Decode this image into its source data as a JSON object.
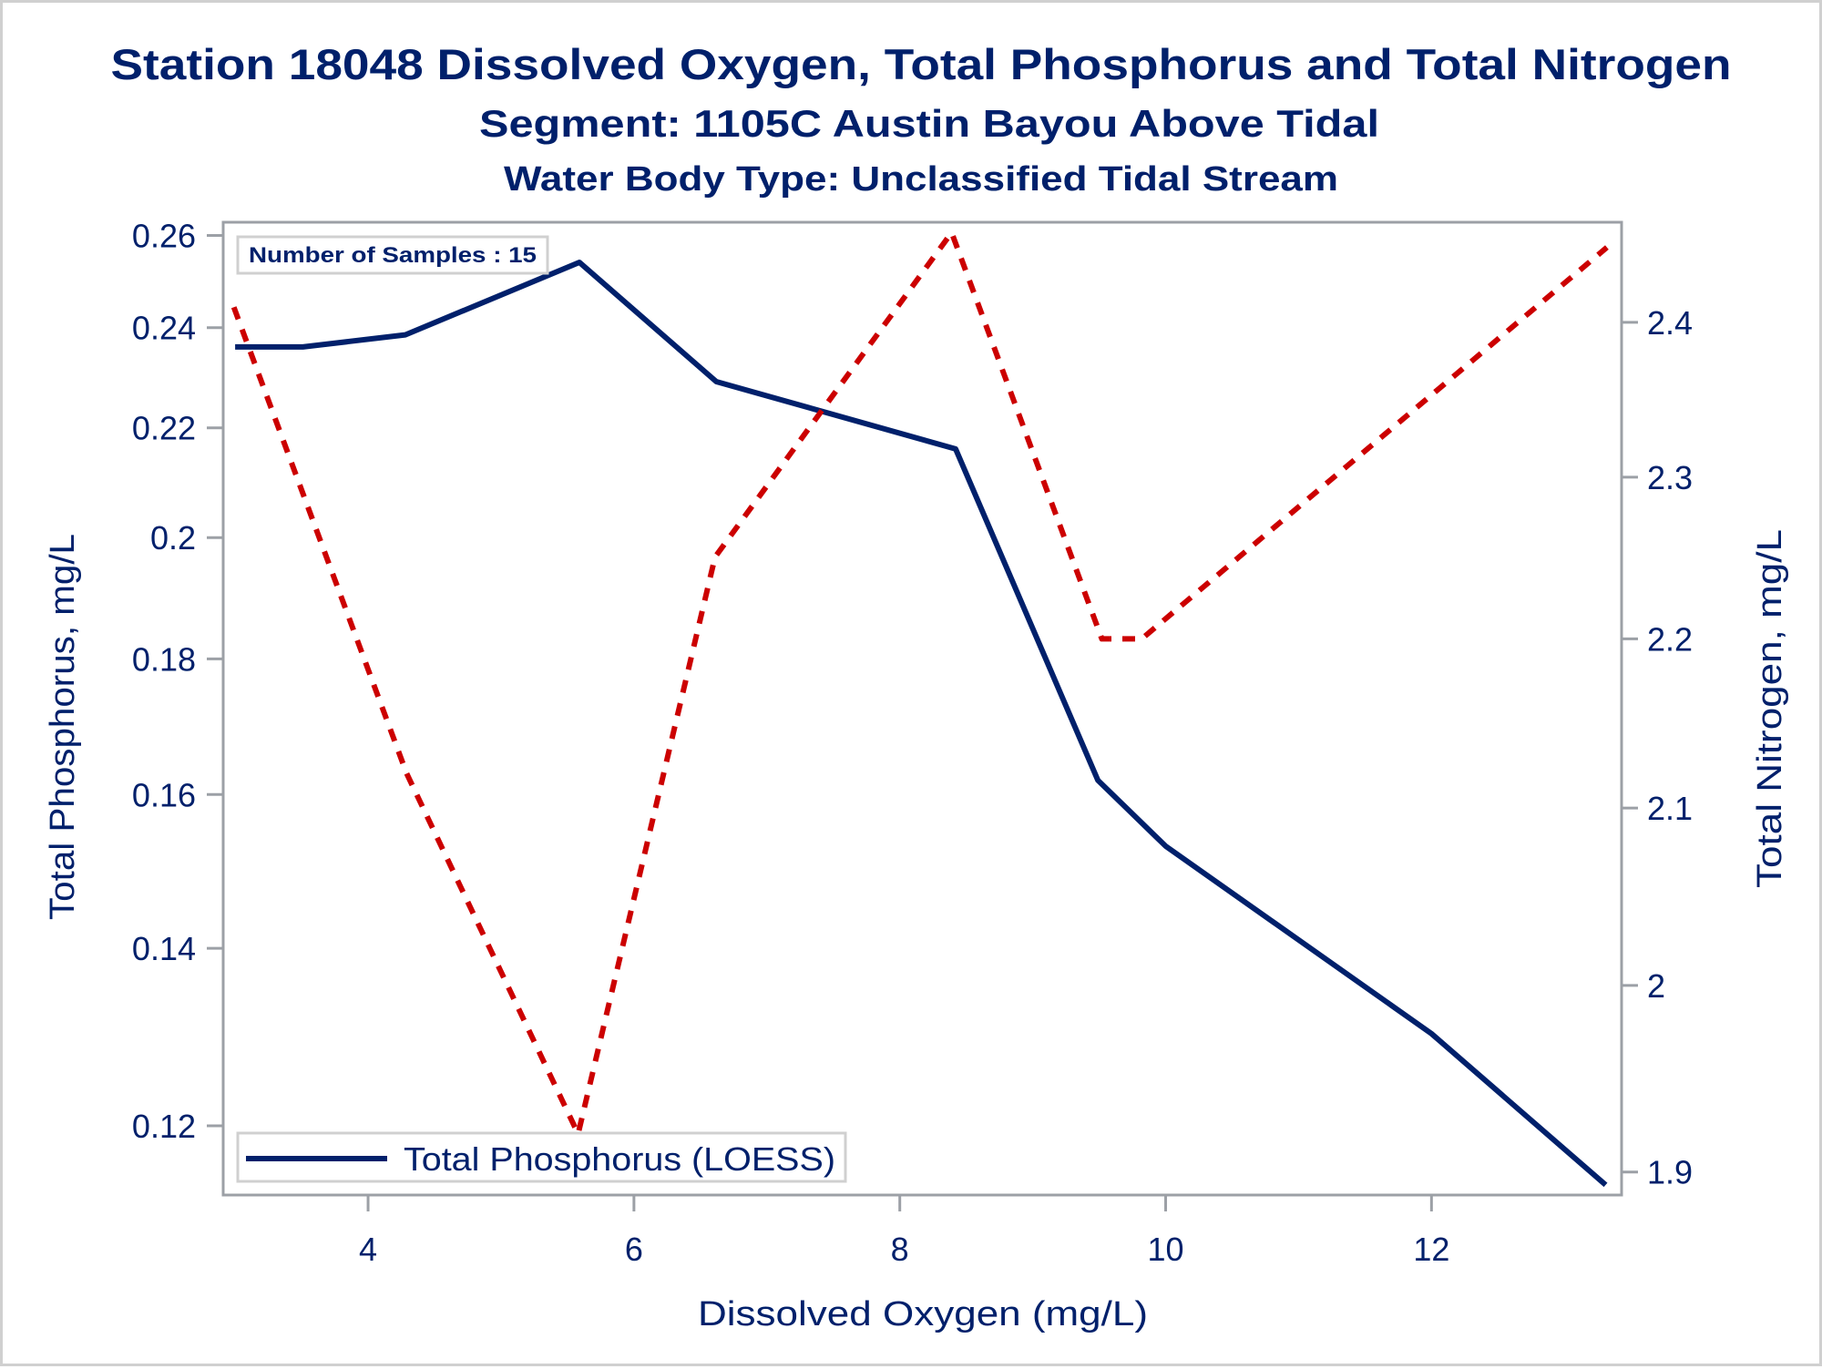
{
  "chart_data": {
    "type": "line",
    "title": "Station 18048  Dissolved Oxygen, Total Phosphorus and Total Nitrogen",
    "subtitle": "Segment: 1105C  Austin Bayou Above Tidal",
    "subtitle2": "Water Body Type: Unclassified Tidal Stream",
    "xlabel": "Dissolved Oxygen (mg/L)",
    "ylabel": "Total Phosphorus, mg/L",
    "y2label": "Total Nitrogen, mg/L",
    "xlim": [
      2.91,
      13.43
    ],
    "ylim": [
      0.113,
      0.263
    ],
    "y2lim": [
      1.888,
      2.467
    ],
    "yscale": "log",
    "y2scale": "log",
    "grid": false,
    "x_ticks": [
      4,
      6,
      8,
      10,
      12
    ],
    "x_tick_labels": [
      "4",
      "6",
      "8",
      "10",
      "12"
    ],
    "y_ticks": [
      0.12,
      0.14,
      0.16,
      0.18,
      0.2,
      0.22,
      0.24,
      0.26
    ],
    "y_tick_labels": [
      "0.12",
      "0.14",
      "0.16",
      "0.18",
      "0.2",
      "0.22",
      "0.24",
      "0.26"
    ],
    "y2_ticks": [
      1.9,
      2.0,
      2.1,
      2.2,
      2.3,
      2.4
    ],
    "y2_tick_labels": [
      "1.9",
      "2",
      "2.1",
      "2.2",
      "2.3",
      "2.4"
    ],
    "series": [
      {
        "name": "Total Phosphorus (LOESS)",
        "axis": "left",
        "style": "solid",
        "color": "#00206b",
        "x": [
          3.0,
          3.51,
          4.28,
          5.59,
          6.62,
          8.42,
          9.49,
          10.0,
          12.0,
          13.31
        ],
        "y": [
          0.236,
          0.236,
          0.2385,
          0.254,
          0.229,
          0.216,
          0.162,
          0.153,
          0.13,
          0.114
        ]
      },
      {
        "name": "Total Nitrogen",
        "axis": "right",
        "style": "dashed",
        "color": "#cc0000",
        "x": [
          2.99,
          4.29,
          5.58,
          6.61,
          8.39,
          9.52,
          9.82,
          13.32
        ],
        "y": [
          2.41,
          2.12,
          1.92,
          2.25,
          2.46,
          2.2,
          2.2,
          2.45
        ]
      }
    ],
    "legend": {
      "position": "bottom-left",
      "entries": [
        "Total Phosphorus (LOESS)"
      ]
    },
    "annotations": [
      {
        "text": "Number of Samples : 15",
        "position": "top-left"
      }
    ]
  }
}
